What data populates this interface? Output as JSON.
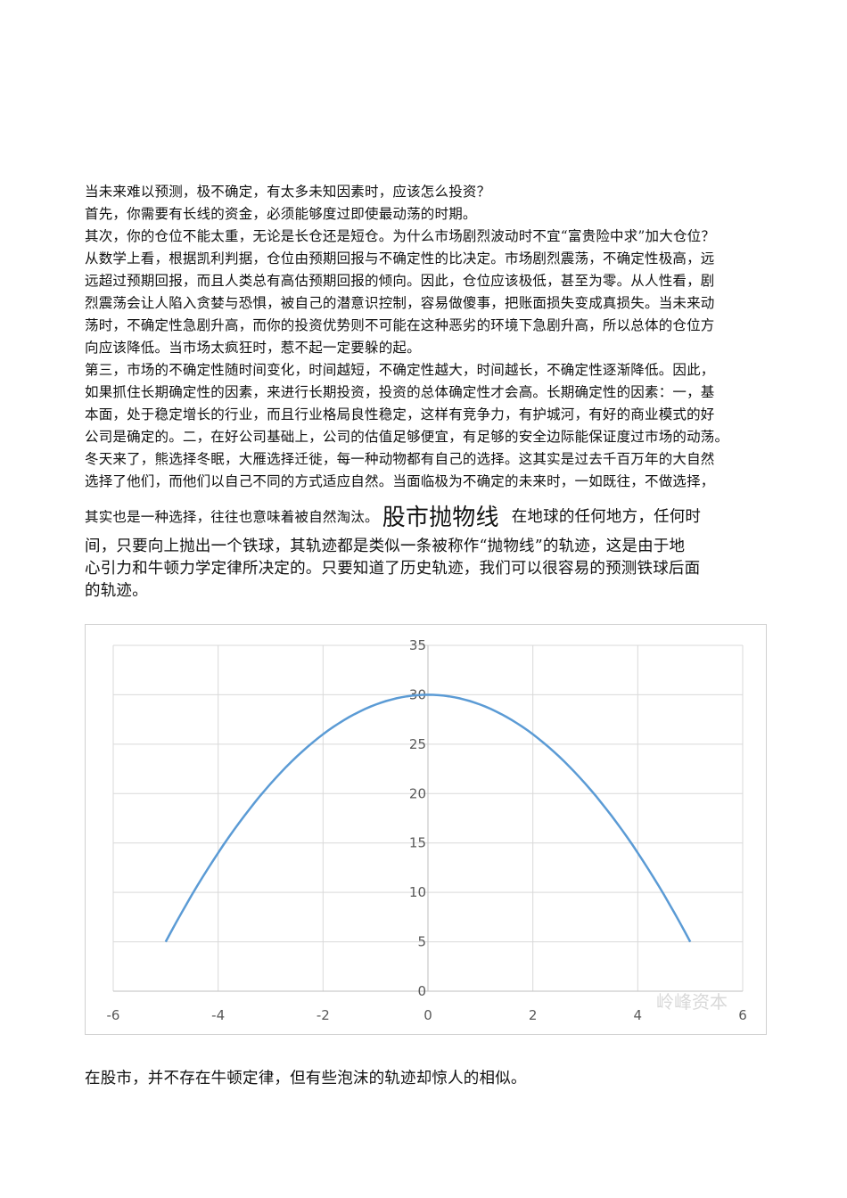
{
  "article": {
    "lines1": [
      "当未来难以预测，极不确定，有太多未知因素时，应该怎么投资？",
      "首先，你需要有长线的资金，必须能够度过即使最动荡的时期。",
      "其次，你的仓位不能太重，无论是长仓还是短仓。为什么市场剧烈波动时不宜“富贵险中求”加大仓位？",
      "从数学上看，根据凯利判据，仓位由预期回报与不确定性的比决定。市场剧烈震荡，不确定性极高，远",
      "远超过预期回报，而且人类总有高估预期回报的倾向。因此，仓位应该极低，甚至为零。从人性看，剧",
      "烈震荡会让人陷入贪婪与恐惧，被自己的潜意识控制，容易做傻事，把账面损失变成真损失。当未来动",
      "荡时，不确定性急剧升高，而你的投资优势则不可能在这种恶劣的环境下急剧升高，所以总体的仓位方",
      "向应该降低。当市场太疯狂时，惹不起一定要躲的起。",
      "第三，市场的不确定性随时间变化，时间越短，不确定性越大，时间越长，不确定性逐渐降低。因此，",
      "如果抓住长期确定性的因素，来进行长期投资，投资的总体确定性才会高。长期确定性的因素：一，基",
      "本面，处于稳定增长的行业，而且行业格局良性稳定，这样有竞争力，有护城河，有好的商业模式的好",
      "公司是确定的。二，在好公司基础上，公司的估值足够便宜，有足够的安全边际能保证度过市场的动荡。",
      "冬天来了，熊选择冬眠，大雁选择迁徙，每一种动物都有自己的选择。这其实是过去千百万年的大自然",
      "选择了他们，而他们以自己不同的方式适应自然。当面临极为不确定的未来时，一如既往，不做选择，"
    ],
    "line_mixed_a": "其实也是一种选择，往往也意味着被自然淘汰。",
    "section_title": "股市抛物线",
    "line_mixed_b": "在地球的任何地方，任何时",
    "lines2": [
      "间，只要向上抛出一个铁球，其轨迹都是类似一条被称作“抛物线”的轨迹，这是由于地",
      "心引力和牛顿力学定律所决定的。只要知道了历史轨迹，我们可以很容易的预测铁球后面",
      "的轨迹。"
    ],
    "closing": "在股市，并不存在牛顿定律，但有些泡沫的轨迹却惊人的相似。"
  },
  "chart_data": {
    "type": "line",
    "title": "",
    "xlabel": "",
    "ylabel": "",
    "x": [
      -5,
      -4,
      -3,
      -2,
      -1,
      0,
      1,
      2,
      3,
      4,
      5
    ],
    "series": [
      {
        "values": [
          5,
          14,
          21,
          26,
          29,
          30,
          29,
          26,
          21,
          14,
          5
        ],
        "color": "#5b9bd5"
      }
    ],
    "xlim": [
      -6,
      6
    ],
    "ylim": [
      0,
      35
    ],
    "xticks": [
      "-6",
      "-4",
      "-2",
      "0",
      "2",
      "4",
      "6"
    ],
    "yticks": [
      "0",
      "5",
      "10",
      "15",
      "20",
      "25",
      "30",
      "35"
    ],
    "grid": true,
    "watermark": "岭峰资本"
  }
}
